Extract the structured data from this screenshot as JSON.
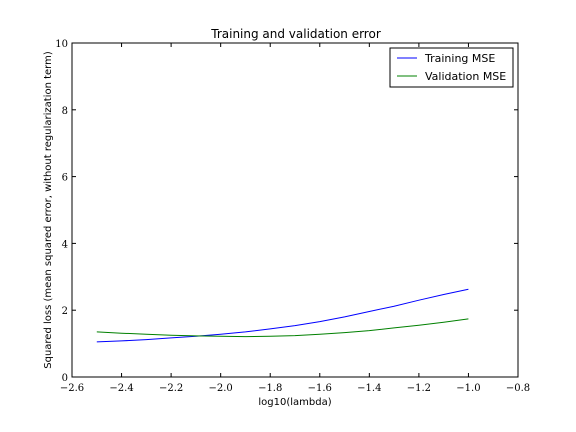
{
  "chart_data": {
    "type": "line",
    "title": "Training and validation error",
    "xlabel": "log10(lambda)",
    "ylabel": "Squared loss (mean squared error, without regularization term)",
    "xlim": [
      -2.6,
      -0.8
    ],
    "ylim": [
      0,
      10
    ],
    "xticks": [
      -2.6,
      -2.4,
      -2.2,
      -2.0,
      -1.8,
      -1.6,
      -1.4,
      -1.2,
      -1.0,
      -0.8
    ],
    "xtick_labels": [
      "−2.6",
      "−2.4",
      "−2.2",
      "−2.0",
      "−1.8",
      "−1.6",
      "−1.4",
      "−1.2",
      "−1.0",
      "−0.8"
    ],
    "yticks": [
      0,
      2,
      4,
      6,
      8,
      10
    ],
    "ytick_labels": [
      "0",
      "2",
      "4",
      "6",
      "8",
      "10"
    ],
    "grid": false,
    "legend_position": "top-right",
    "series": [
      {
        "name": "Training MSE",
        "color": "#0000ff",
        "x": [
          -2.5,
          -2.4,
          -2.3,
          -2.2,
          -2.1,
          -2.0,
          -1.9,
          -1.8,
          -1.7,
          -1.6,
          -1.5,
          -1.4,
          -1.3,
          -1.2,
          -1.1,
          -1.0
        ],
        "y": [
          1.05,
          1.08,
          1.12,
          1.17,
          1.22,
          1.28,
          1.35,
          1.44,
          1.54,
          1.66,
          1.8,
          1.96,
          2.12,
          2.3,
          2.47,
          2.63
        ]
      },
      {
        "name": "Validation MSE",
        "color": "#008000",
        "x": [
          -2.5,
          -2.4,
          -2.3,
          -2.2,
          -2.1,
          -2.0,
          -1.9,
          -1.8,
          -1.7,
          -1.6,
          -1.5,
          -1.4,
          -1.3,
          -1.2,
          -1.1,
          -1.0
        ],
        "y": [
          1.35,
          1.31,
          1.28,
          1.25,
          1.23,
          1.22,
          1.21,
          1.22,
          1.24,
          1.28,
          1.33,
          1.39,
          1.47,
          1.55,
          1.64,
          1.74
        ]
      }
    ]
  }
}
